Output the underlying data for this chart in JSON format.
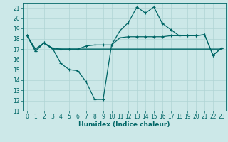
{
  "x": [
    0,
    1,
    2,
    3,
    4,
    5,
    6,
    7,
    8,
    9,
    10,
    11,
    12,
    13,
    14,
    15,
    16,
    17,
    18,
    19,
    20,
    21,
    22,
    23
  ],
  "line_flat": [
    18.3,
    17.0,
    17.6,
    17.0,
    17.0,
    17.0,
    17.0,
    17.0,
    17.0,
    17.0,
    17.0,
    17.0,
    17.0,
    17.0,
    17.0,
    17.0,
    17.0,
    17.0,
    17.0,
    17.0,
    17.0,
    17.0,
    17.0,
    17.0
  ],
  "line_mid": [
    18.3,
    16.8,
    17.6,
    17.1,
    17.0,
    17.0,
    17.0,
    17.3,
    17.4,
    17.4,
    17.4,
    18.1,
    18.2,
    18.2,
    18.2,
    18.2,
    18.2,
    18.3,
    18.3,
    18.3,
    18.3,
    18.4,
    16.4,
    17.1
  ],
  "line_dip": [
    18.3,
    16.8,
    17.6,
    17.1,
    15.6,
    15.0,
    14.9,
    13.8,
    12.1,
    12.1,
    17.4,
    18.8,
    19.6,
    21.1,
    20.5,
    21.1,
    19.5,
    18.9,
    18.3,
    18.3,
    18.3,
    18.4,
    16.4,
    17.1
  ],
  "bg_color": "#cce8e8",
  "grid_color": "#b0d4d4",
  "line_color": "#006666",
  "xlabel": "Humidex (Indice chaleur)",
  "ylim": [
    11,
    21.5
  ],
  "xlim": [
    -0.5,
    23.5
  ],
  "yticks": [
    11,
    12,
    13,
    14,
    15,
    16,
    17,
    18,
    19,
    20,
    21
  ],
  "xticks": [
    0,
    1,
    2,
    3,
    4,
    5,
    6,
    7,
    8,
    9,
    10,
    11,
    12,
    13,
    14,
    15,
    16,
    17,
    18,
    19,
    20,
    21,
    22,
    23
  ],
  "fontsize": 5.5,
  "xlabel_fontsize": 6.5
}
